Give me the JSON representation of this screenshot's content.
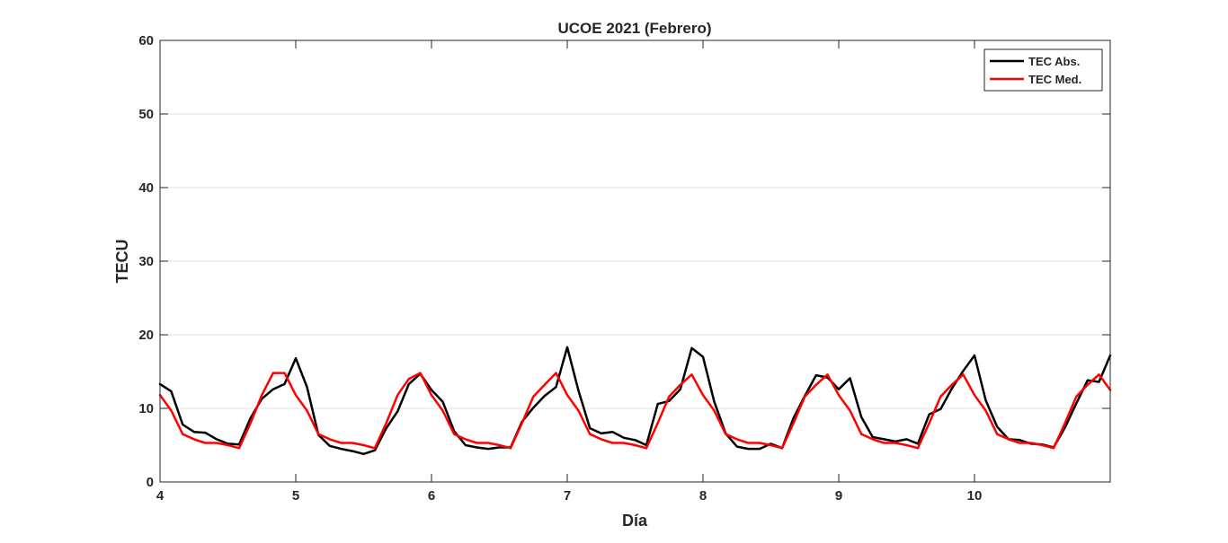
{
  "chart_data": {
    "type": "line",
    "title": "UCOE 2021 (Febrero)",
    "xlabel": "Día",
    "ylabel": "TECU",
    "xlim": [
      4,
      11
    ],
    "ylim": [
      0,
      60
    ],
    "xticks": [
      4,
      5,
      6,
      7,
      8,
      9,
      10
    ],
    "yticks": [
      0,
      10,
      20,
      30,
      40,
      50,
      60
    ],
    "grid": "horizontal",
    "legend_position": "top-right",
    "series": [
      {
        "name": "TEC Abs.",
        "color": "#000000",
        "x": [
          4.0,
          4.083,
          4.167,
          4.25,
          4.333,
          4.417,
          4.5,
          4.583,
          4.667,
          4.75,
          4.833,
          4.917,
          5.0,
          5.083,
          5.167,
          5.25,
          5.333,
          5.417,
          5.5,
          5.583,
          5.667,
          5.75,
          5.833,
          5.917,
          6.0,
          6.083,
          6.167,
          6.25,
          6.333,
          6.417,
          6.5,
          6.583,
          6.667,
          6.75,
          6.833,
          6.917,
          7.0,
          7.083,
          7.167,
          7.25,
          7.333,
          7.417,
          7.5,
          7.583,
          7.667,
          7.75,
          7.833,
          7.917,
          8.0,
          8.083,
          8.167,
          8.25,
          8.333,
          8.417,
          8.5,
          8.583,
          8.667,
          8.75,
          8.833,
          8.917,
          9.0,
          9.083,
          9.167,
          9.25,
          9.333,
          9.417,
          9.5,
          9.583,
          9.667,
          9.75,
          9.833,
          9.917,
          10.0,
          10.083,
          10.167,
          10.25,
          10.333,
          10.417,
          10.5,
          10.583,
          10.667,
          10.75,
          10.833,
          10.917,
          11.0
        ],
        "y": [
          13.3,
          12.3,
          7.8,
          6.8,
          6.7,
          5.8,
          5.2,
          5.1,
          8.7,
          11.3,
          12.6,
          13.3,
          16.8,
          12.9,
          6.4,
          4.9,
          4.5,
          4.2,
          3.8,
          4.3,
          7.3,
          9.6,
          13.3,
          14.7,
          12.5,
          10.9,
          6.9,
          5.0,
          4.7,
          4.5,
          4.7,
          4.7,
          8.2,
          10.1,
          11.7,
          12.9,
          18.3,
          12.4,
          7.3,
          6.6,
          6.8,
          6.0,
          5.7,
          5.0,
          10.6,
          11.0,
          12.6,
          18.2,
          17.0,
          10.9,
          6.6,
          4.8,
          4.5,
          4.5,
          5.2,
          4.6,
          8.7,
          11.7,
          14.5,
          14.2,
          12.6,
          14.1,
          8.8,
          6.1,
          5.8,
          5.5,
          5.8,
          5.2,
          9.2,
          9.9,
          12.7,
          15.1,
          17.2,
          11.1,
          7.5,
          5.8,
          5.7,
          5.2,
          5.1,
          4.7,
          7.4,
          10.7,
          13.8,
          13.6,
          17.2
        ]
      },
      {
        "name": "TEC Med.",
        "color": "#ff0000",
        "x": [
          4.0,
          4.083,
          4.167,
          4.25,
          4.333,
          4.417,
          4.5,
          4.583,
          4.667,
          4.75,
          4.833,
          4.917,
          5.0,
          5.083,
          5.167,
          5.25,
          5.333,
          5.417,
          5.5,
          5.583,
          5.667,
          5.75,
          5.833,
          5.917,
          6.0,
          6.083,
          6.167,
          6.25,
          6.333,
          6.417,
          6.5,
          6.583,
          6.667,
          6.75,
          6.833,
          6.917,
          7.0,
          7.083,
          7.167,
          7.25,
          7.333,
          7.417,
          7.5,
          7.583,
          7.667,
          7.75,
          7.833,
          7.917,
          8.0,
          8.083,
          8.167,
          8.25,
          8.333,
          8.417,
          8.5,
          8.583,
          8.667,
          8.75,
          8.833,
          8.917,
          9.0,
          9.083,
          9.167,
          9.25,
          9.333,
          9.417,
          9.5,
          9.583,
          9.667,
          9.75,
          9.833,
          9.917,
          10.0,
          10.083,
          10.167,
          10.25,
          10.333,
          10.417,
          10.5,
          10.583,
          10.667,
          10.75,
          10.833,
          10.917,
          11.0
        ],
        "y": [
          11.8,
          9.7,
          6.5,
          5.8,
          5.3,
          5.3,
          5.0,
          4.6,
          8.0,
          11.8,
          14.8,
          14.8,
          11.8,
          9.7,
          6.5,
          5.8,
          5.3,
          5.3,
          5.0,
          4.6,
          8.0,
          11.8,
          14.0,
          14.8,
          11.8,
          9.7,
          6.5,
          5.8,
          5.3,
          5.3,
          5.0,
          4.6,
          8.0,
          11.6,
          13.2,
          14.8,
          11.8,
          9.7,
          6.5,
          5.8,
          5.3,
          5.3,
          5.0,
          4.6,
          8.0,
          11.6,
          13.2,
          14.6,
          11.8,
          9.7,
          6.5,
          5.8,
          5.3,
          5.3,
          5.0,
          4.6,
          8.0,
          11.6,
          13.2,
          14.6,
          11.8,
          9.7,
          6.5,
          5.8,
          5.3,
          5.3,
          5.0,
          4.6,
          8.0,
          11.6,
          13.2,
          14.6,
          11.8,
          9.7,
          6.5,
          5.8,
          5.3,
          5.3,
          5.0,
          4.6,
          8.0,
          11.6,
          13.2,
          14.6,
          12.5
        ]
      }
    ]
  }
}
